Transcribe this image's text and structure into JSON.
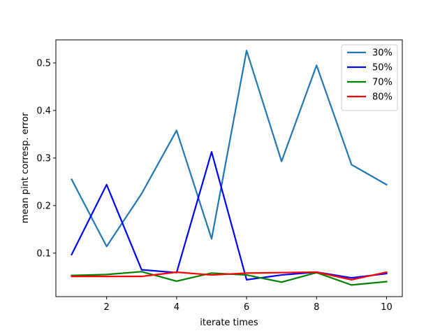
{
  "chart_data": {
    "type": "line",
    "xlabel": "iterate times",
    "ylabel": "mean pint corresp. error",
    "xlim": [
      0.55,
      10.45
    ],
    "ylim": [
      0.0085,
      0.5485
    ],
    "xticks": [
      2,
      4,
      6,
      8,
      10
    ],
    "yticks": [
      0.1,
      0.2,
      0.3,
      0.4,
      0.5
    ],
    "x": [
      1,
      2,
      3,
      4,
      5,
      6,
      7,
      8,
      9,
      10
    ],
    "grid": false,
    "legend_position": "top-right",
    "series": [
      {
        "name": "30%",
        "color": "#1f77b4",
        "values": [
          0.255,
          0.114,
          0.225,
          0.358,
          0.13,
          0.526,
          0.293,
          0.495,
          0.286,
          0.244
        ]
      },
      {
        "name": "50%",
        "color": "#0000ff",
        "values": [
          0.097,
          0.244,
          0.065,
          0.059,
          0.313,
          0.044,
          0.054,
          0.06,
          0.048,
          0.057
        ]
      },
      {
        "name": "70%",
        "color": "#008000",
        "values": [
          0.053,
          0.055,
          0.061,
          0.041,
          0.058,
          0.054,
          0.039,
          0.059,
          0.033,
          0.04
        ]
      },
      {
        "name": "80%",
        "color": "#ff0000",
        "values": [
          0.051,
          0.051,
          0.051,
          0.06,
          0.054,
          0.058,
          0.059,
          0.06,
          0.044,
          0.06
        ]
      }
    ]
  }
}
